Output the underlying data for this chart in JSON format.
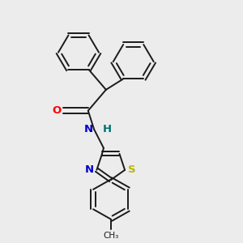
{
  "background_color": "#ececec",
  "bond_color": "#1a1a1a",
  "bond_width": 1.4,
  "atom_colors": {
    "O": "#ff0000",
    "N": "#0000cc",
    "H": "#007070",
    "S": "#b8b800",
    "C": "#1a1a1a"
  },
  "font_size": 9.5,
  "fig_width": 3.0,
  "fig_height": 3.0,
  "dpi": 100
}
